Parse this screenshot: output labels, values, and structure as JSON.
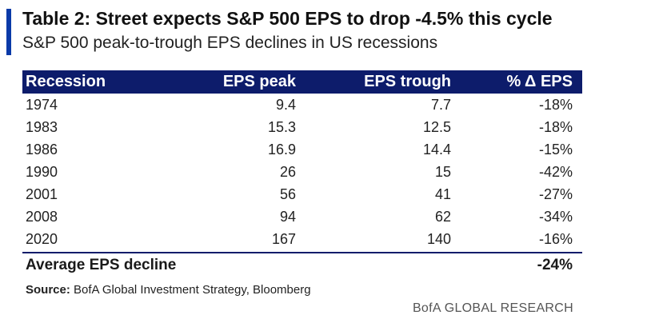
{
  "title": "Table 2: Street expects S&P 500 EPS to drop -4.5% this cycle",
  "subtitle": "S&P 500 peak-to-trough EPS declines in US recessions",
  "source_label": "Source:",
  "source_text": "BofA Global Investment Strategy, Bloomberg",
  "footer": "BofA GLOBAL RESEARCH",
  "colors": {
    "header_bg": "#0d1c6b",
    "accent": "#0a3aa8"
  },
  "chart_data": {
    "type": "table",
    "columns": [
      "Recession",
      "EPS peak",
      "EPS trough",
      "% Δ EPS"
    ],
    "rows": [
      [
        "1974",
        "9.4",
        "7.7",
        "-18%"
      ],
      [
        "1983",
        "15.3",
        "12.5",
        "-18%"
      ],
      [
        "1986",
        "16.9",
        "14.4",
        "-15%"
      ],
      [
        "1990",
        "26",
        "15",
        "-42%"
      ],
      [
        "2001",
        "56",
        "41",
        "-27%"
      ],
      [
        "2008",
        "94",
        "62",
        "-34%"
      ],
      [
        "2020",
        "167",
        "140",
        "-16%"
      ]
    ],
    "summary": {
      "label": "Average EPS decline",
      "value": "-24%"
    }
  }
}
